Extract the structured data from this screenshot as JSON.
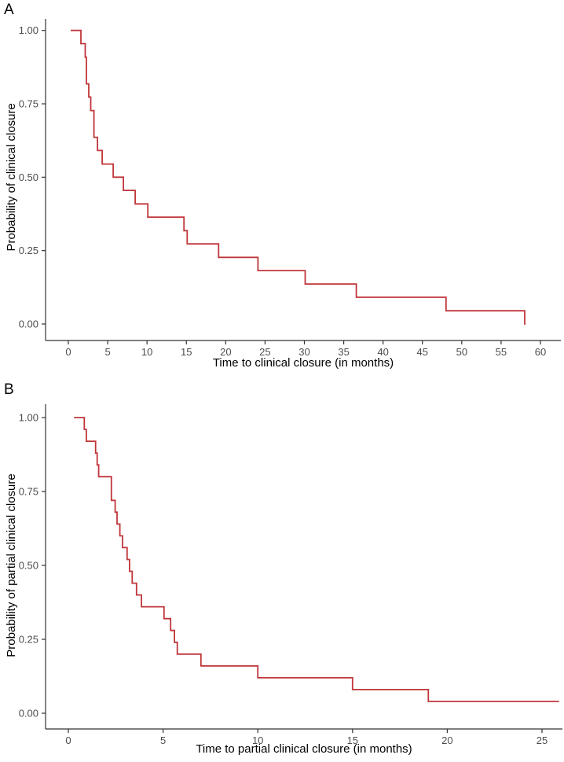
{
  "figure": {
    "background": "#ffffff",
    "description_visible_text_only": true
  },
  "chart_data": [
    {
      "type": "line",
      "style": "kaplan-meier-step",
      "panel_label": "A",
      "title": "",
      "xlabel": "Time to clinical closure (in months)",
      "ylabel": "Probability of clinical closure",
      "xlim": [
        0,
        62.5
      ],
      "ylim": [
        0,
        1
      ],
      "grid": "off",
      "legend": "none",
      "line_color": "#c0363a",
      "axis_color": "#333333",
      "tick_text_color": "#4d4d4d",
      "title_text_color": "#000000",
      "x_ticks": [
        {
          "v": 0,
          "label": "0"
        },
        {
          "v": 5,
          "label": "5"
        },
        {
          "v": 10,
          "label": "10"
        },
        {
          "v": 15,
          "label": "15"
        },
        {
          "v": 20,
          "label": "20"
        },
        {
          "v": 25,
          "label": "25"
        },
        {
          "v": 30,
          "label": "30"
        },
        {
          "v": 35,
          "label": "35"
        },
        {
          "v": 40,
          "label": "40"
        },
        {
          "v": 45,
          "label": "45"
        },
        {
          "v": 50,
          "label": "50"
        },
        {
          "v": 55,
          "label": "55"
        },
        {
          "v": 60,
          "label": "60"
        }
      ],
      "y_ticks": [
        {
          "v": 0.0,
          "label": "0.00"
        },
        {
          "v": 0.25,
          "label": "0.25"
        },
        {
          "v": 0.5,
          "label": "0.50"
        },
        {
          "v": 0.75,
          "label": "0.75"
        },
        {
          "v": 1.0,
          "label": "1.00"
        }
      ],
      "start": {
        "t": 0.3,
        "p": 1.0
      },
      "steps": [
        [
          1.6,
          0.955
        ],
        [
          2.15,
          0.909
        ],
        [
          2.3,
          0.818
        ],
        [
          2.6,
          0.773
        ],
        [
          2.85,
          0.727
        ],
        [
          3.25,
          0.636
        ],
        [
          3.7,
          0.591
        ],
        [
          4.3,
          0.545
        ],
        [
          5.7,
          0.5
        ],
        [
          7.0,
          0.455
        ],
        [
          8.5,
          0.409
        ],
        [
          10.1,
          0.364
        ],
        [
          14.7,
          0.318
        ],
        [
          15.1,
          0.273
        ],
        [
          19.1,
          0.227
        ],
        [
          24.1,
          0.182
        ],
        [
          30.1,
          0.136
        ],
        [
          36.6,
          0.091
        ],
        [
          48.0,
          0.045
        ],
        [
          58.0,
          0.0
        ]
      ],
      "end_time": 58.1
    },
    {
      "type": "line",
      "style": "kaplan-meier-step",
      "panel_label": "B",
      "title": "",
      "xlabel": "Time to partial clinical closure (in months)",
      "ylabel": "Probability of partial clinical closure",
      "xlim": [
        0,
        26
      ],
      "ylim": [
        0,
        1
      ],
      "grid": "off",
      "legend": "none",
      "line_color": "#c0363a",
      "axis_color": "#333333",
      "tick_text_color": "#4d4d4d",
      "title_text_color": "#000000",
      "x_ticks": [
        {
          "v": 0,
          "label": "0"
        },
        {
          "v": 5,
          "label": "5"
        },
        {
          "v": 10,
          "label": "10"
        },
        {
          "v": 15,
          "label": "15"
        },
        {
          "v": 20,
          "label": "20"
        },
        {
          "v": 25,
          "label": "25"
        }
      ],
      "y_ticks": [
        {
          "v": 0.0,
          "label": "0.00"
        },
        {
          "v": 0.25,
          "label": "0.25"
        },
        {
          "v": 0.5,
          "label": "0.50"
        },
        {
          "v": 0.75,
          "label": "0.75"
        },
        {
          "v": 1.0,
          "label": "1.00"
        }
      ],
      "start": {
        "t": 0.3,
        "p": 1.0
      },
      "steps": [
        [
          0.84,
          0.96
        ],
        [
          0.95,
          0.92
        ],
        [
          1.44,
          0.88
        ],
        [
          1.52,
          0.84
        ],
        [
          1.6,
          0.8
        ],
        [
          2.27,
          0.72
        ],
        [
          2.47,
          0.68
        ],
        [
          2.57,
          0.64
        ],
        [
          2.72,
          0.6
        ],
        [
          2.86,
          0.56
        ],
        [
          3.1,
          0.52
        ],
        [
          3.23,
          0.48
        ],
        [
          3.37,
          0.44
        ],
        [
          3.6,
          0.4
        ],
        [
          3.86,
          0.36
        ],
        [
          5.05,
          0.32
        ],
        [
          5.4,
          0.28
        ],
        [
          5.6,
          0.24
        ],
        [
          5.75,
          0.2
        ],
        [
          7.0,
          0.16
        ],
        [
          10.0,
          0.12
        ],
        [
          15.0,
          0.08
        ],
        [
          19.0,
          0.04
        ]
      ],
      "end_time": 25.9
    }
  ]
}
